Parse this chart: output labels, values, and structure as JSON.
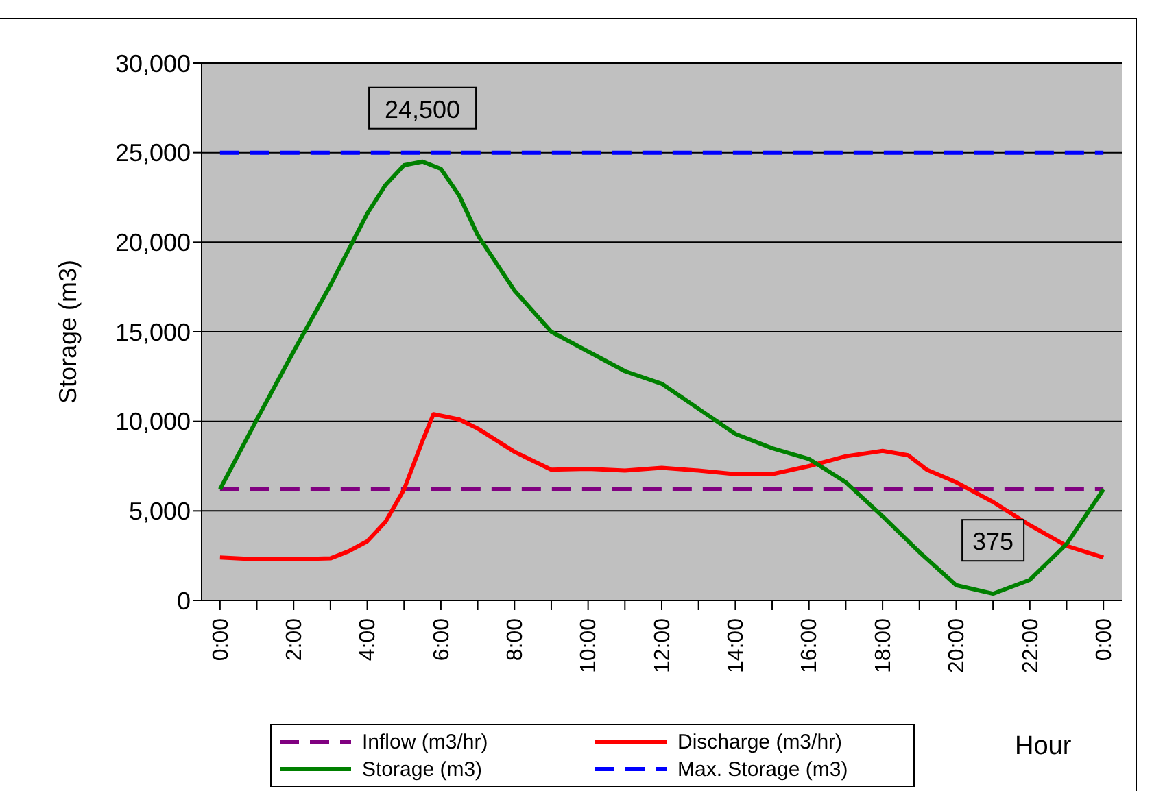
{
  "chart_data": {
    "type": "line",
    "xlabel": "Hour",
    "ylabel": "Storage (m3)",
    "xlim": [
      -0.5,
      24.5
    ],
    "xticks": [
      {
        "value": 0,
        "label": "0:00"
      },
      {
        "value": 1,
        "label": null
      },
      {
        "value": 2,
        "label": "2:00"
      },
      {
        "value": 3,
        "label": null
      },
      {
        "value": 4,
        "label": "4:00"
      },
      {
        "value": 5,
        "label": null
      },
      {
        "value": 6,
        "label": "6:00"
      },
      {
        "value": 7,
        "label": null
      },
      {
        "value": 8,
        "label": "8:00"
      },
      {
        "value": 9,
        "label": null
      },
      {
        "value": 10,
        "label": "10:00"
      },
      {
        "value": 11,
        "label": null
      },
      {
        "value": 12,
        "label": "12:00"
      },
      {
        "value": 13,
        "label": null
      },
      {
        "value": 14,
        "label": "14:00"
      },
      {
        "value": 15,
        "label": null
      },
      {
        "value": 16,
        "label": "16:00"
      },
      {
        "value": 17,
        "label": null
      },
      {
        "value": 18,
        "label": "18:00"
      },
      {
        "value": 19,
        "label": null
      },
      {
        "value": 20,
        "label": "20:00"
      },
      {
        "value": 21,
        "label": null
      },
      {
        "value": 22,
        "label": "22:00"
      },
      {
        "value": 23,
        "label": null
      },
      {
        "value": 24,
        "label": "0:00"
      }
    ],
    "ylim": [
      0,
      30000
    ],
    "yticks": [
      0,
      {
        "value": 5000,
        "label": "5,000"
      },
      {
        "value": 10000,
        "label": "10,000"
      },
      {
        "value": 15000,
        "label": "15,000"
      },
      {
        "value": 20000,
        "label": "20,000"
      },
      {
        "value": 25000,
        "label": "25,000"
      },
      {
        "value": 30000,
        "label": "30,000"
      }
    ],
    "grid": "y",
    "legend": "bottom",
    "marker": "none",
    "series": [
      {
        "name": "Inflow (m3/hr)",
        "color": "#800080",
        "line_style": "dashed",
        "x": [
          0,
          24
        ],
        "values": [
          6200,
          6200
        ]
      },
      {
        "name": "Discharge (m3/hr)",
        "color": "#ff0000",
        "line_style": "solid",
        "x": [
          0,
          1,
          2,
          3,
          3.5,
          4,
          4.5,
          5,
          5.5,
          5.8,
          6.5,
          7,
          8,
          9,
          10,
          11,
          12,
          13,
          14,
          15,
          16,
          17,
          18,
          18.7,
          19.2,
          20,
          21,
          22,
          23,
          24
        ],
        "values": [
          2400,
          2300,
          2300,
          2350,
          2750,
          3300,
          4400,
          6200,
          8900,
          10400,
          10100,
          9600,
          8300,
          7300,
          7350,
          7250,
          7400,
          7250,
          7050,
          7050,
          7500,
          8050,
          8350,
          8100,
          7300,
          6600,
          5500,
          4200,
          3050,
          2400
        ]
      },
      {
        "name": "Storage (m3)",
        "color": "#008000",
        "line_style": "solid",
        "x": [
          0,
          1,
          2,
          3,
          4,
          4.5,
          5,
          5.5,
          6,
          6.5,
          7,
          8,
          9,
          10,
          11,
          12,
          13,
          14,
          15,
          16,
          17,
          18,
          19,
          20,
          21,
          22,
          23,
          24
        ],
        "values": [
          6200,
          10100,
          13900,
          17600,
          21600,
          23200,
          24300,
          24500,
          24100,
          22600,
          20400,
          17300,
          15000,
          13900,
          12800,
          12100,
          10700,
          9300,
          8500,
          7900,
          6600,
          4700,
          2700,
          850,
          375,
          1150,
          3150,
          6200
        ]
      },
      {
        "name": "Max. Storage (m3)",
        "color": "#0000ff",
        "line_style": "dashed",
        "x": [
          0,
          24
        ],
        "values": [
          25000,
          25000
        ]
      }
    ],
    "annotations": [
      {
        "text": "24,500",
        "x": 5.5,
        "y": 24500
      },
      {
        "text": "375",
        "x": 21,
        "y": 375
      }
    ]
  }
}
